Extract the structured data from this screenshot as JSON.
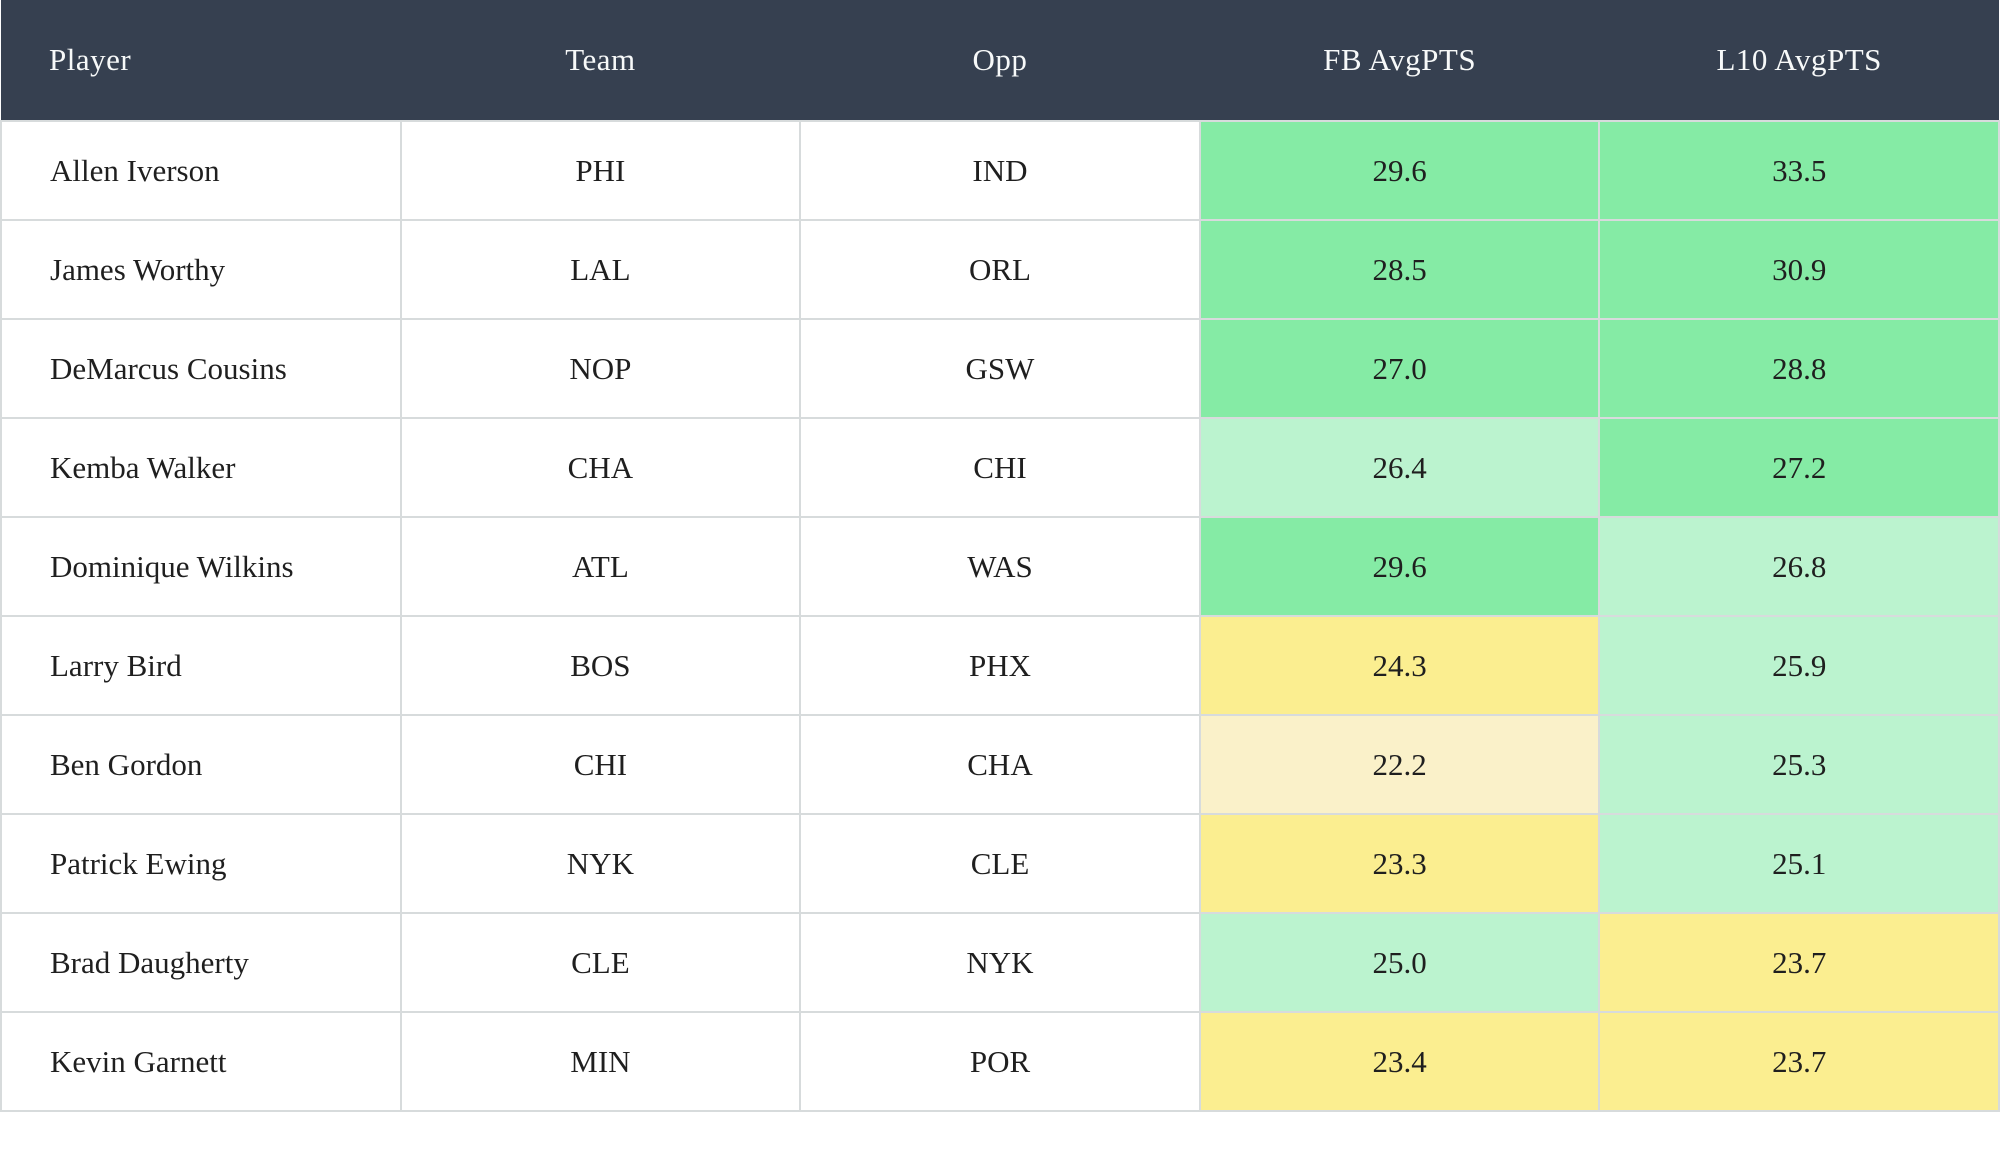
{
  "colors": {
    "header_bg": "#364050",
    "header_text": "#f7f9f9",
    "border": "#d7dbdc",
    "green_strong": "#85EBA5",
    "green_light": "#BBF3CF",
    "yellow": "#FBEE90",
    "yellow_light": "#FAF1C9"
  },
  "table": {
    "columns": {
      "player": "Player",
      "team": "Team",
      "opp": "Opp",
      "fb": "FB AvgPTS",
      "l10": "L10 AvgPTS"
    },
    "rows": [
      {
        "player": "Allen Iverson",
        "team": "PHI",
        "opp": "IND",
        "fb": "29.6",
        "l10": "33.5",
        "fb_bg": "#85EBA5",
        "l10_bg": "#85EBA5"
      },
      {
        "player": "James Worthy",
        "team": "LAL",
        "opp": "ORL",
        "fb": "28.5",
        "l10": "30.9",
        "fb_bg": "#85EBA5",
        "l10_bg": "#85EBA5"
      },
      {
        "player": "DeMarcus Cousins",
        "team": "NOP",
        "opp": "GSW",
        "fb": "27.0",
        "l10": "28.8",
        "fb_bg": "#85EBA5",
        "l10_bg": "#85EBA5"
      },
      {
        "player": "Kemba Walker",
        "team": "CHA",
        "opp": "CHI",
        "fb": "26.4",
        "l10": "27.2",
        "fb_bg": "#BBF3CF",
        "l10_bg": "#85EBA5"
      },
      {
        "player": "Dominique Wilkins",
        "team": "ATL",
        "opp": "WAS",
        "fb": "29.6",
        "l10": "26.8",
        "fb_bg": "#85EBA5",
        "l10_bg": "#BBF3CF"
      },
      {
        "player": "Larry Bird",
        "team": "BOS",
        "opp": "PHX",
        "fb": "24.3",
        "l10": "25.9",
        "fb_bg": "#FBEE90",
        "l10_bg": "#BBF3CF"
      },
      {
        "player": "Ben Gordon",
        "team": "CHI",
        "opp": "CHA",
        "fb": "22.2",
        "l10": "25.3",
        "fb_bg": "#FAF1C9",
        "l10_bg": "#BBF3CF"
      },
      {
        "player": "Patrick Ewing",
        "team": "NYK",
        "opp": "CLE",
        "fb": "23.3",
        "l10": "25.1",
        "fb_bg": "#FBEE90",
        "l10_bg": "#BBF3CF"
      },
      {
        "player": "Brad Daugherty",
        "team": "CLE",
        "opp": "NYK",
        "fb": "25.0",
        "l10": "23.7",
        "fb_bg": "#BBF3CF",
        "l10_bg": "#FBEE90"
      },
      {
        "player": "Kevin Garnett",
        "team": "MIN",
        "opp": "POR",
        "fb": "23.4",
        "l10": "23.7",
        "fb_bg": "#FBEE90",
        "l10_bg": "#FBEE90"
      }
    ]
  }
}
